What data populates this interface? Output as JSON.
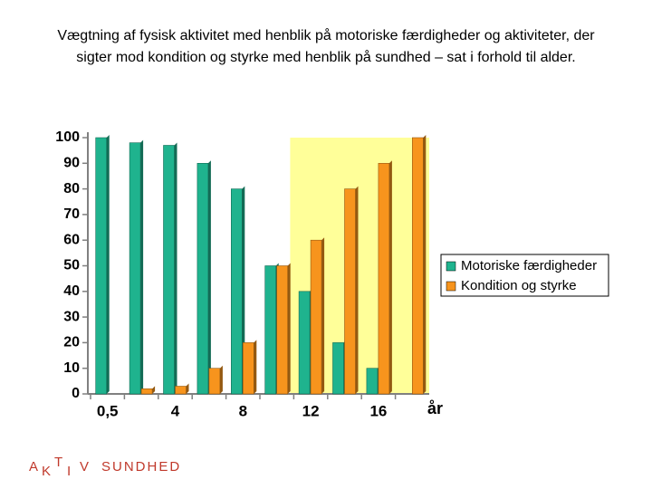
{
  "chart_data": {
    "type": "bar",
    "title": "Vægtning af fysisk aktivitet med henblik på motoriske færdigheder og aktiviteter, der sigter mod kondition og styrke med henblik på sundhed – sat i forhold til alder.",
    "x_label": "år",
    "categories": [
      "0,5",
      null,
      "4",
      null,
      "8",
      null,
      "12",
      null,
      "16",
      null
    ],
    "series": [
      {
        "name": "Motoriske færdigheder",
        "color": "#1fb38e",
        "values": [
          100,
          98,
          97,
          90,
          80,
          50,
          40,
          20,
          10,
          0
        ]
      },
      {
        "name": "Kondition og styrke",
        "color": "#f7941d",
        "values": [
          0,
          2,
          3,
          10,
          20,
          50,
          60,
          80,
          90,
          100
        ]
      }
    ],
    "ylim": [
      0,
      100
    ],
    "yticks": [
      0,
      10,
      20,
      30,
      40,
      50,
      60,
      70,
      80,
      90,
      100
    ],
    "grid": false
  },
  "footer": {
    "logo_letters": [
      "A",
      "K",
      "T",
      "I",
      "V"
    ],
    "logo_word": "SUNDHED"
  }
}
